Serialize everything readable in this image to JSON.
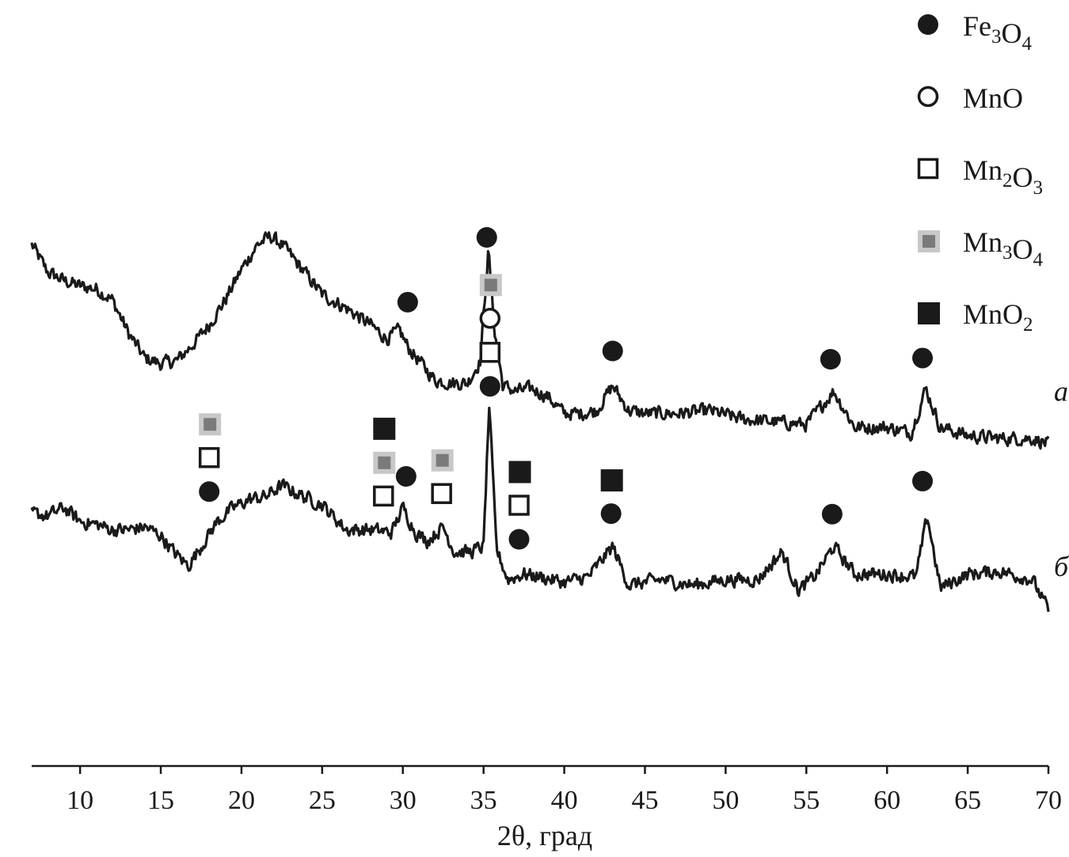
{
  "chart_data": {
    "type": "line",
    "xlabel": "2θ, град",
    "xlim": [
      7,
      70
    ],
    "xticks": [
      10,
      15,
      20,
      25,
      30,
      35,
      40,
      45,
      50,
      55,
      60,
      65,
      70
    ],
    "grid": false,
    "legend_position": "top-right",
    "legend": [
      {
        "key": "Fe3O4",
        "base": "Fe",
        "sub1": "3",
        "mid": "O",
        "sub2": "4",
        "marker": "filled-circle",
        "color": "#1a1a1a"
      },
      {
        "key": "MnO",
        "base": "MnO",
        "sub1": "",
        "mid": "",
        "sub2": "",
        "marker": "open-circle",
        "color": "#1a1a1a"
      },
      {
        "key": "Mn2O3",
        "base": "Mn",
        "sub1": "2",
        "mid": "O",
        "sub2": "3",
        "marker": "open-square",
        "color": "#1a1a1a"
      },
      {
        "key": "Mn3O4",
        "base": "Mn",
        "sub1": "3",
        "mid": "O",
        "sub2": "4",
        "marker": "gray-square",
        "color": "#8c8c8c"
      },
      {
        "key": "MnO2",
        "base": "MnO",
        "sub1": "2",
        "mid": "",
        "sub2": "",
        "marker": "filled-square",
        "color": "#1a1a1a"
      }
    ],
    "series": [
      {
        "curve_label": "а",
        "x": [
          7.0,
          8.0,
          9.0,
          10.0,
          11.0,
          12.0,
          13.0,
          14.0,
          15.0,
          16.0,
          17.0,
          18.0,
          19.0,
          20.0,
          21.0,
          21.8,
          22.5,
          23.5,
          25.0,
          26.5,
          28.0,
          29.0,
          29.8,
          30.3,
          31.0,
          32.0,
          33.0,
          34.0,
          34.8,
          35.3,
          35.7,
          36.2,
          37.0,
          38.0,
          39.0,
          40.0,
          41.0,
          42.0,
          43.0,
          44.0,
          45.0,
          47.0,
          49.0,
          51.0,
          53.0,
          55.0,
          56.7,
          58.0,
          60.0,
          61.5,
          62.4,
          63.3,
          65.0,
          67.0,
          69.0,
          70.0
        ],
        "y": [
          38.0,
          33.0,
          31.5,
          30.5,
          30.0,
          28.0,
          22.0,
          17.5,
          16.5,
          17.0,
          20.0,
          23.5,
          28.0,
          33.5,
          38.0,
          39.5,
          38.0,
          34.5,
          29.0,
          26.5,
          23.5,
          21.0,
          22.5,
          19.5,
          17.0,
          13.5,
          13.0,
          13.0,
          17.0,
          37.0,
          22.0,
          12.5,
          11.5,
          12.0,
          10.5,
          7.5,
          7.5,
          8.0,
          12.5,
          8.0,
          7.5,
          7.5,
          8.0,
          6.5,
          6.0,
          5.5,
          11.5,
          5.0,
          5.0,
          4.0,
          12.0,
          5.0,
          3.5,
          3.0,
          3.0,
          2.0
        ],
        "noise": 1.7
      },
      {
        "curve_label": "б",
        "x": [
          7.0,
          8.0,
          9.0,
          10.0,
          11.0,
          12.0,
          13.0,
          14.0,
          15.0,
          15.8,
          16.7,
          17.5,
          18.5,
          19.5,
          20.5,
          21.5,
          22.5,
          23.5,
          25.0,
          26.5,
          28.0,
          29.3,
          30.0,
          30.8,
          31.5,
          32.5,
          33.2,
          34.2,
          35.0,
          35.35,
          35.8,
          36.5,
          37.5,
          38.5,
          40.0,
          41.5,
          43.0,
          44.0,
          46.0,
          48.0,
          50.0,
          52.0,
          53.5,
          54.5,
          55.5,
          56.7,
          58.0,
          60.0,
          61.8,
          62.5,
          63.3,
          65.0,
          67.0,
          69.0,
          70.0
        ],
        "y": [
          -10.5,
          -11.0,
          -9.5,
          -12.0,
          -12.5,
          -13.5,
          -13.5,
          -13.0,
          -14.5,
          -17.5,
          -20.0,
          -16.5,
          -12.0,
          -9.5,
          -8.0,
          -7.5,
          -5.5,
          -7.0,
          -9.0,
          -13.5,
          -13.5,
          -14.0,
          -9.5,
          -14.0,
          -15.5,
          -13.0,
          -17.5,
          -17.5,
          -16.5,
          9.0,
          -17.0,
          -22.5,
          -21.5,
          -22.0,
          -23.0,
          -22.0,
          -16.5,
          -23.5,
          -22.5,
          -23.5,
          -22.5,
          -22.5,
          -17.5,
          -24.5,
          -22.0,
          -16.5,
          -21.5,
          -21.5,
          -22.0,
          -11.0,
          -24.0,
          -21.5,
          -21.0,
          -22.5,
          -28.0
        ],
        "noise": 1.7
      }
    ],
    "peak_markers": [
      {
        "series": 0,
        "x": 30.3,
        "stack": [
          "Fe3O4"
        ]
      },
      {
        "series": 0,
        "x": 35.2,
        "stack": [
          "Fe3O4"
        ]
      },
      {
        "series": 0,
        "x": 43.0,
        "stack": [
          "Fe3O4"
        ]
      },
      {
        "series": 0,
        "x": 56.5,
        "stack": [
          "Fe3O4"
        ]
      },
      {
        "series": 0,
        "x": 62.2,
        "stack": [
          "Fe3O4"
        ]
      },
      {
        "series": 1,
        "x": 18.0,
        "stack": [
          "Fe3O4",
          "Mn2O3",
          "Mn3O4"
        ]
      },
      {
        "series": 1,
        "x": 28.8,
        "stack": [
          "Mn2O3",
          "Mn3O4",
          "MnO2"
        ]
      },
      {
        "series": 1,
        "x": 30.2,
        "stack": [
          "Fe3O4"
        ]
      },
      {
        "series": 1,
        "x": 32.4,
        "stack": [
          "Mn2O3",
          "Mn3O4"
        ]
      },
      {
        "series": 1,
        "x": 35.4,
        "stack": [
          "Fe3O4",
          "Mn2O3",
          "MnO",
          "Mn3O4"
        ]
      },
      {
        "series": 1,
        "x": 37.2,
        "stack": [
          "Fe3O4",
          "Mn2O3",
          "MnO2"
        ]
      },
      {
        "series": 1,
        "x": 42.9,
        "stack": [
          "Fe3O4",
          "MnO2"
        ]
      },
      {
        "series": 1,
        "x": 56.6,
        "stack": [
          "Fe3O4"
        ]
      },
      {
        "series": 1,
        "x": 62.2,
        "stack": [
          "Fe3O4"
        ]
      }
    ]
  }
}
